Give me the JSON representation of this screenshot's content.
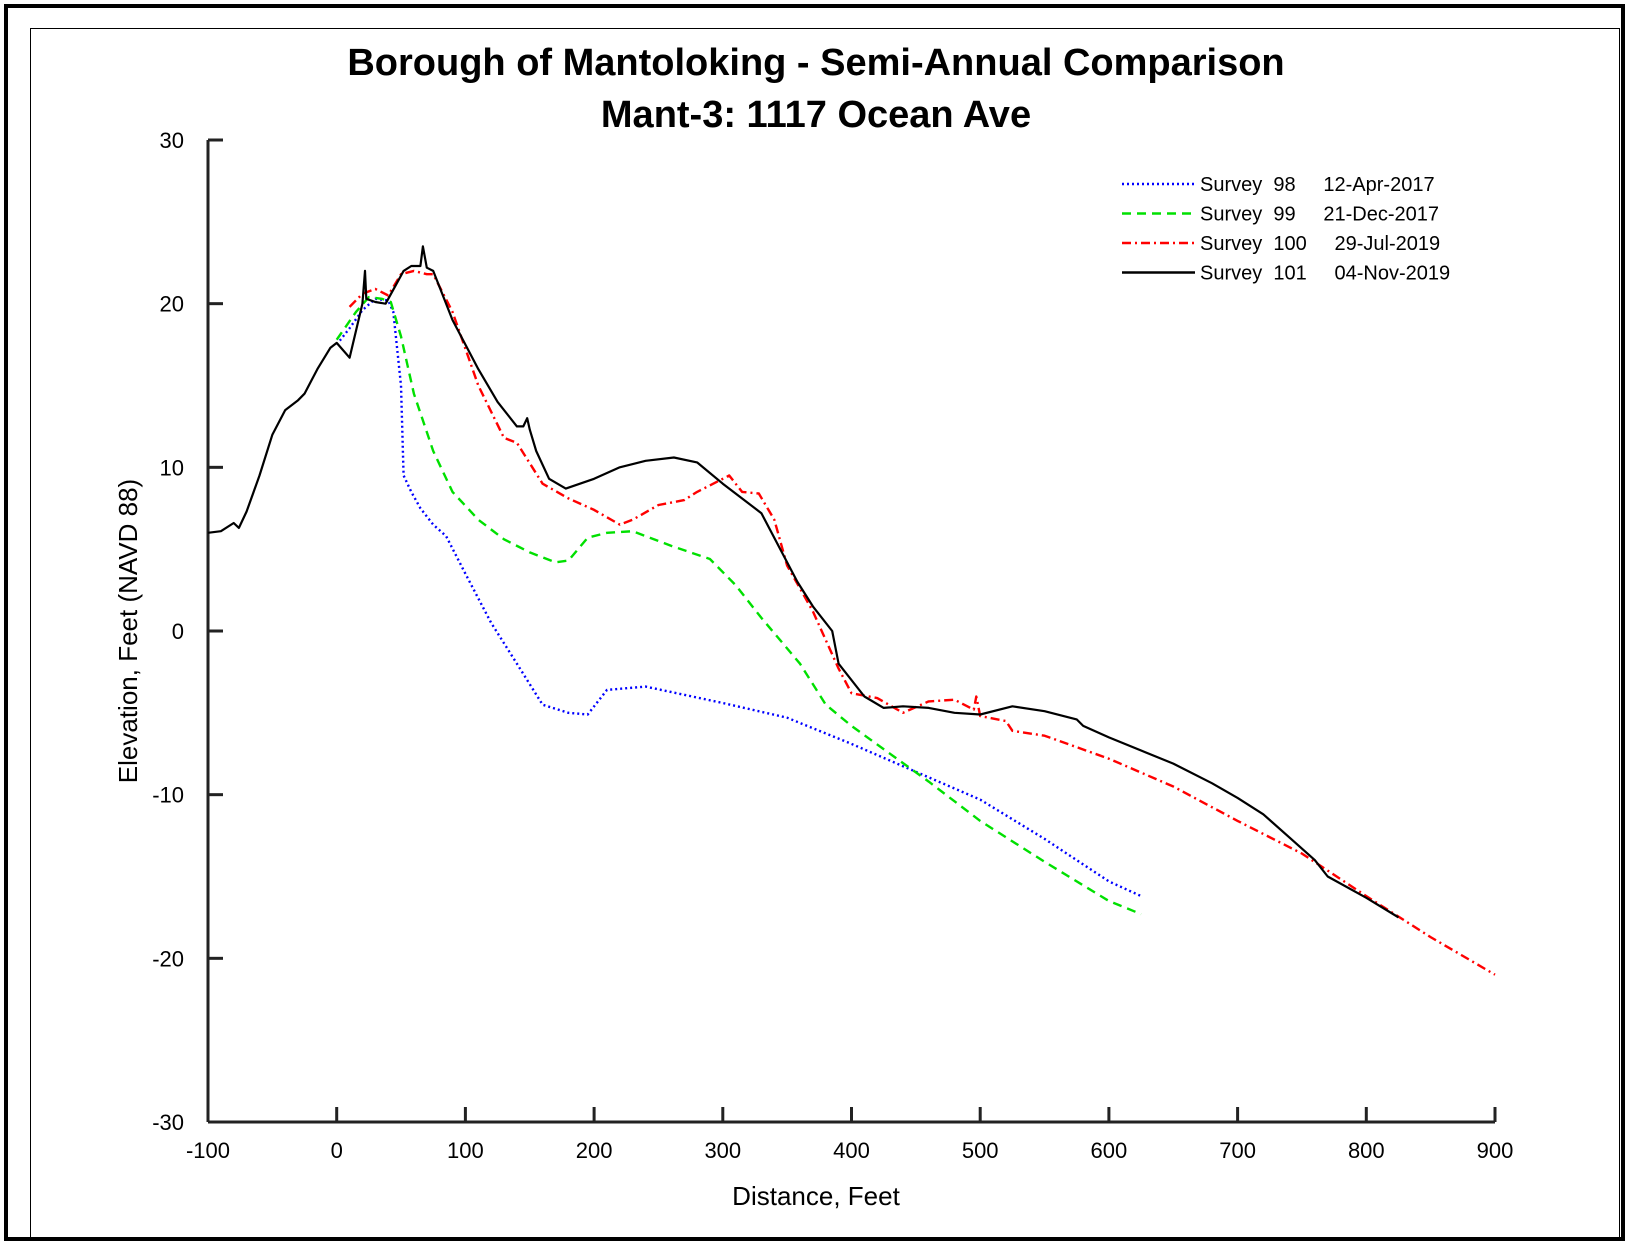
{
  "chart_data": {
    "type": "line",
    "title": "Borough of Mantoloking - Semi-Annual Comparison",
    "subtitle": "Mant-3: 1117 Ocean Ave",
    "xlabel": "Distance, Feet",
    "ylabel": "Elevation, Feet (NAVD 88)",
    "xlim": [
      -100,
      900
    ],
    "ylim": [
      -30,
      30
    ],
    "x_ticks": [
      -100,
      0,
      100,
      200,
      300,
      400,
      500,
      600,
      700,
      800,
      900
    ],
    "y_ticks": [
      -30,
      -20,
      -10,
      0,
      10,
      20,
      30
    ],
    "grid": false,
    "legend_position": "top-right",
    "series": [
      {
        "name": "Survey 98",
        "date": "12-Apr-2017",
        "legend_label": "Survey  98     12-Apr-2017",
        "color": "#0000ff",
        "style": "dotted",
        "points": [
          [
            0,
            17.5
          ],
          [
            10,
            18.5
          ],
          [
            20,
            19.6
          ],
          [
            30,
            20.3
          ],
          [
            40,
            20.2
          ],
          [
            44,
            19.5
          ],
          [
            50,
            15
          ],
          [
            52,
            9.5
          ],
          [
            58,
            8.5
          ],
          [
            65,
            7.5
          ],
          [
            75,
            6.5
          ],
          [
            85,
            5.8
          ],
          [
            100,
            3.5
          ],
          [
            120,
            0.5
          ],
          [
            140,
            -2
          ],
          [
            160,
            -4.5
          ],
          [
            180,
            -5
          ],
          [
            195,
            -5.1
          ],
          [
            210,
            -3.6
          ],
          [
            240,
            -3.4
          ],
          [
            300,
            -4.4
          ],
          [
            350,
            -5.3
          ],
          [
            400,
            -6.9
          ],
          [
            450,
            -8.6
          ],
          [
            500,
            -10.3
          ],
          [
            550,
            -12.7
          ],
          [
            600,
            -15.3
          ],
          [
            625,
            -16.2
          ]
        ]
      },
      {
        "name": "Survey 99",
        "date": "21-Dec-2017",
        "legend_label": "Survey  99     21-Dec-2017",
        "color": "#00e000",
        "style": "dashed",
        "points": [
          [
            0,
            17.8
          ],
          [
            15,
            19.5
          ],
          [
            25,
            20.4
          ],
          [
            35,
            20.3
          ],
          [
            42,
            20.1
          ],
          [
            50,
            18
          ],
          [
            60,
            14.5
          ],
          [
            75,
            11
          ],
          [
            90,
            8.5
          ],
          [
            110,
            6.8
          ],
          [
            130,
            5.6
          ],
          [
            150,
            4.8
          ],
          [
            170,
            4.2
          ],
          [
            180,
            4.3
          ],
          [
            195,
            5.7
          ],
          [
            210,
            6
          ],
          [
            230,
            6.1
          ],
          [
            260,
            5.2
          ],
          [
            290,
            4.4
          ],
          [
            310,
            2.8
          ],
          [
            330,
            0.8
          ],
          [
            360,
            -2
          ],
          [
            380,
            -4.5
          ],
          [
            400,
            -5.8
          ],
          [
            430,
            -7.5
          ],
          [
            460,
            -9.2
          ],
          [
            500,
            -11.6
          ],
          [
            550,
            -14.1
          ],
          [
            600,
            -16.5
          ],
          [
            625,
            -17.3
          ]
        ]
      },
      {
        "name": "Survey 100",
        "date": "29-Jul-2019",
        "legend_label": "Survey  100     29-Jul-2019",
        "color": "#ff0000",
        "style": "dashdot",
        "points": [
          [
            10,
            19.8
          ],
          [
            20,
            20.6
          ],
          [
            30,
            20.9
          ],
          [
            40,
            20.5
          ],
          [
            50,
            21.8
          ],
          [
            60,
            22
          ],
          [
            70,
            21.8
          ],
          [
            75,
            21.8
          ],
          [
            90,
            19.5
          ],
          [
            110,
            15
          ],
          [
            130,
            11.8
          ],
          [
            140,
            11.5
          ],
          [
            160,
            9
          ],
          [
            180,
            8.1
          ],
          [
            200,
            7.4
          ],
          [
            220,
            6.5
          ],
          [
            230,
            6.8
          ],
          [
            250,
            7.7
          ],
          [
            270,
            8
          ],
          [
            280,
            8.5
          ],
          [
            295,
            9.1
          ],
          [
            305,
            9.5
          ],
          [
            315,
            8.5
          ],
          [
            328,
            8.4
          ],
          [
            340,
            6.8
          ],
          [
            350,
            4
          ],
          [
            370,
            1.2
          ],
          [
            390,
            -2.3
          ],
          [
            400,
            -3.8
          ],
          [
            420,
            -4.1
          ],
          [
            440,
            -5
          ],
          [
            460,
            -4.3
          ],
          [
            480,
            -4.2
          ],
          [
            495,
            -4.8
          ],
          [
            497,
            -4
          ],
          [
            500,
            -5.2
          ],
          [
            520,
            -5.5
          ],
          [
            525,
            -6.1
          ],
          [
            550,
            -6.4
          ],
          [
            600,
            -7.8
          ],
          [
            650,
            -9.5
          ],
          [
            700,
            -11.6
          ],
          [
            750,
            -13.6
          ],
          [
            800,
            -16.2
          ],
          [
            850,
            -18.7
          ],
          [
            900,
            -21
          ]
        ]
      },
      {
        "name": "Survey 101",
        "date": "04-Nov-2019",
        "legend_label": "Survey  101     04-Nov-2019",
        "color": "#000000",
        "style": "solid",
        "points": [
          [
            -100,
            6
          ],
          [
            -90,
            6.1
          ],
          [
            -80,
            6.6
          ],
          [
            -76,
            6.3
          ],
          [
            -70,
            7.3
          ],
          [
            -60,
            9.5
          ],
          [
            -50,
            12
          ],
          [
            -40,
            13.5
          ],
          [
            -30,
            14.1
          ],
          [
            -25,
            14.5
          ],
          [
            -15,
            16
          ],
          [
            -5,
            17.3
          ],
          [
            0,
            17.6
          ],
          [
            10,
            16.7
          ],
          [
            20,
            20
          ],
          [
            22,
            22
          ],
          [
            23,
            20.3
          ],
          [
            30,
            20.1
          ],
          [
            38,
            20
          ],
          [
            45,
            21
          ],
          [
            52,
            22
          ],
          [
            58,
            22.3
          ],
          [
            65,
            22.3
          ],
          [
            67,
            23.5
          ],
          [
            70,
            22.2
          ],
          [
            75,
            22
          ],
          [
            90,
            19
          ],
          [
            110,
            16
          ],
          [
            125,
            14
          ],
          [
            140,
            12.5
          ],
          [
            145,
            12.5
          ],
          [
            148,
            13
          ],
          [
            150,
            12.3
          ],
          [
            155,
            11
          ],
          [
            165,
            9.3
          ],
          [
            178,
            8.7
          ],
          [
            200,
            9.3
          ],
          [
            220,
            10
          ],
          [
            240,
            10.4
          ],
          [
            262,
            10.6
          ],
          [
            280,
            10.3
          ],
          [
            300,
            9
          ],
          [
            330,
            7.2
          ],
          [
            358,
            3
          ],
          [
            370,
            1.5
          ],
          [
            385,
            0
          ],
          [
            390,
            -2
          ],
          [
            410,
            -4
          ],
          [
            425,
            -4.7
          ],
          [
            440,
            -4.6
          ],
          [
            460,
            -4.7
          ],
          [
            480,
            -5
          ],
          [
            500,
            -5.1
          ],
          [
            525,
            -4.6
          ],
          [
            550,
            -4.9
          ],
          [
            575,
            -5.4
          ],
          [
            580,
            -5.8
          ],
          [
            600,
            -6.5
          ],
          [
            650,
            -8.1
          ],
          [
            680,
            -9.3
          ],
          [
            700,
            -10.2
          ],
          [
            720,
            -11.2
          ],
          [
            740,
            -12.6
          ],
          [
            760,
            -14
          ],
          [
            770,
            -15
          ],
          [
            800,
            -16.3
          ],
          [
            825,
            -17.5
          ]
        ]
      }
    ]
  }
}
